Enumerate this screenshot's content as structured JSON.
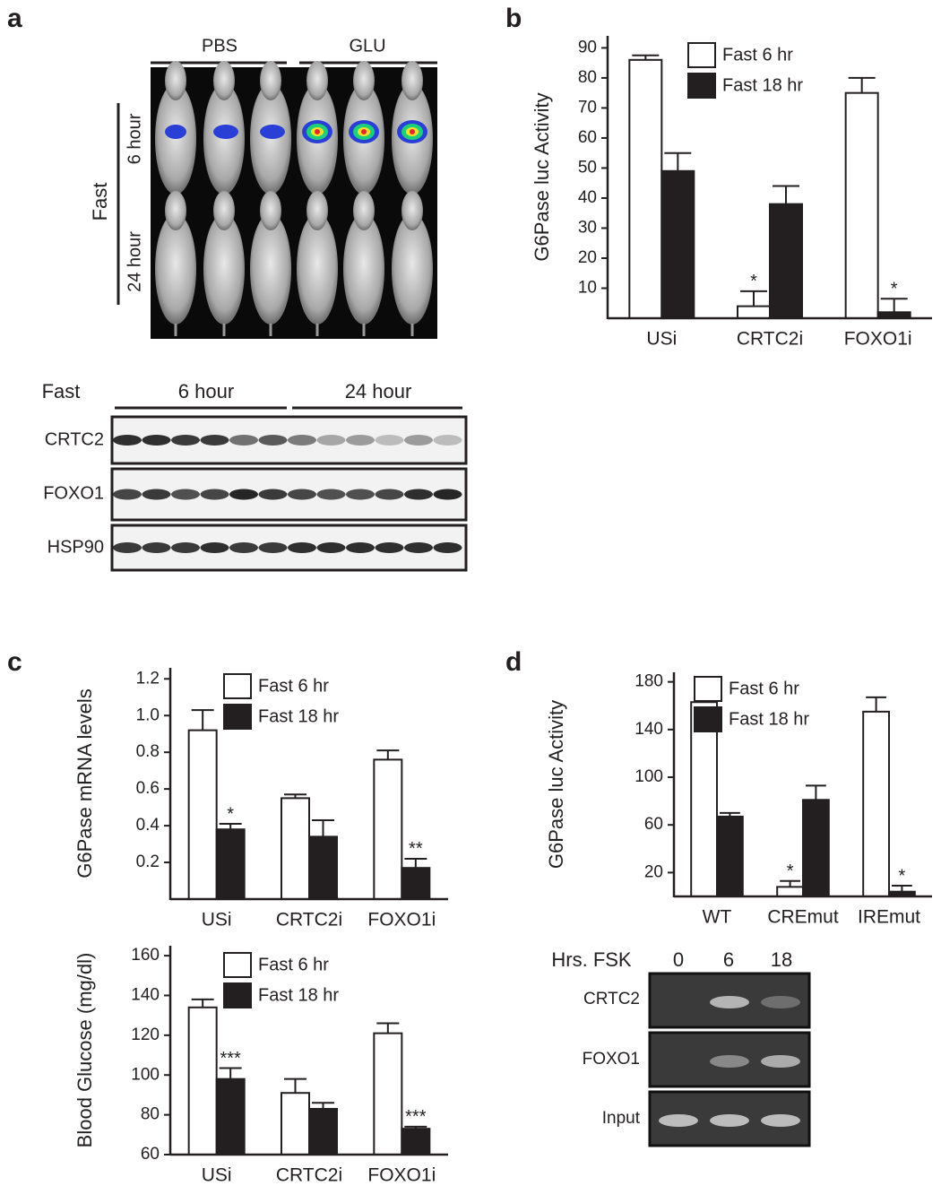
{
  "panel_labels": [
    "a",
    "b",
    "c",
    "d"
  ],
  "imaging": {
    "groups": [
      "PBS",
      "GLU"
    ],
    "side_label": "Fast",
    "rows": [
      "6 hour",
      "24 hour"
    ]
  },
  "blot": {
    "header": "Fast",
    "groups": [
      "6 hour",
      "24 hour"
    ],
    "rows": [
      "CRTC2",
      "FOXO1",
      "HSP90"
    ]
  },
  "chip": {
    "header": "Hrs. FSK",
    "columns": [
      "0",
      "6",
      "18"
    ],
    "rows": [
      "CRTC2",
      "FOXO1",
      "Input"
    ]
  },
  "chart_data": [
    {
      "type": "bar",
      "ylabel": "G6Pase luc Activity",
      "categories": [
        "USi",
        "CRTC2i",
        "FOXO1i"
      ],
      "series": [
        {
          "name": "Fast 6 hr",
          "color": "#ffffff",
          "values": [
            86,
            4,
            75
          ],
          "errors": [
            1.5,
            5,
            5
          ],
          "annotations": [
            null,
            "*",
            null
          ]
        },
        {
          "name": "Fast 18 hr",
          "color": "#231f20",
          "values": [
            49,
            38,
            2
          ],
          "errors": [
            6,
            6,
            4.5
          ],
          "annotations": [
            null,
            null,
            "*"
          ]
        }
      ],
      "ylim": [
        0,
        94
      ],
      "yticks": [
        10,
        20,
        30,
        40,
        50,
        60,
        70,
        80,
        90
      ],
      "legend": "upper center"
    },
    {
      "type": "bar",
      "ylabel": "G6Pase mRNA levels",
      "categories": [
        "USi",
        "CRTC2i",
        "FOXO1i"
      ],
      "series": [
        {
          "name": "Fast 6 hr",
          "color": "#ffffff",
          "values": [
            0.92,
            0.55,
            0.76
          ],
          "errors": [
            0.11,
            0.02,
            0.05
          ],
          "annotations": [
            null,
            null,
            null
          ]
        },
        {
          "name": "Fast 18 hr",
          "color": "#231f20",
          "values": [
            0.38,
            0.34,
            0.17
          ],
          "errors": [
            0.03,
            0.09,
            0.05
          ],
          "annotations": [
            "*",
            null,
            "**"
          ]
        }
      ],
      "ylim": [
        0,
        1.26
      ],
      "yticks": [
        0.2,
        0.4,
        0.6,
        0.8,
        {
          "value": 1,
          "label": "1.0"
        },
        1.2
      ],
      "legend": "upper center"
    },
    {
      "type": "bar",
      "ylabel": "Blood Glucose (mg/dl)",
      "categories": [
        "USi",
        "CRTC2i",
        "FOXO1i"
      ],
      "series": [
        {
          "name": "Fast 6 hr",
          "color": "#ffffff",
          "values": [
            134,
            91,
            121
          ],
          "errors": [
            4,
            7,
            5
          ],
          "annotations": [
            null,
            null,
            null
          ]
        },
        {
          "name": "Fast 18 hr",
          "color": "#231f20",
          "values": [
            98,
            83,
            73
          ],
          "errors": [
            5.5,
            3,
            1
          ],
          "annotations": [
            "***",
            null,
            "***"
          ]
        }
      ],
      "ylim": [
        60,
        165
      ],
      "yticks": [
        60,
        80,
        100,
        120,
        140,
        160
      ],
      "legend": "upper center"
    },
    {
      "type": "bar",
      "ylabel": "G6Pase luc Activity",
      "categories": [
        "WT",
        "CREmut",
        "IREmut"
      ],
      "series": [
        {
          "name": "Fast 6 hr",
          "color": "#ffffff",
          "values": [
            163,
            8,
            155
          ],
          "errors": [
            11,
            5,
            12
          ],
          "annotations": [
            null,
            "*",
            null
          ]
        },
        {
          "name": "Fast 18 hr",
          "color": "#231f20",
          "values": [
            67,
            81,
            4
          ],
          "errors": [
            3,
            12,
            5
          ],
          "annotations": [
            null,
            null,
            "*"
          ]
        }
      ],
      "ylim": [
        0,
        188
      ],
      "yticks": [
        20,
        60,
        100,
        140,
        180
      ],
      "legend": "upper center"
    }
  ]
}
